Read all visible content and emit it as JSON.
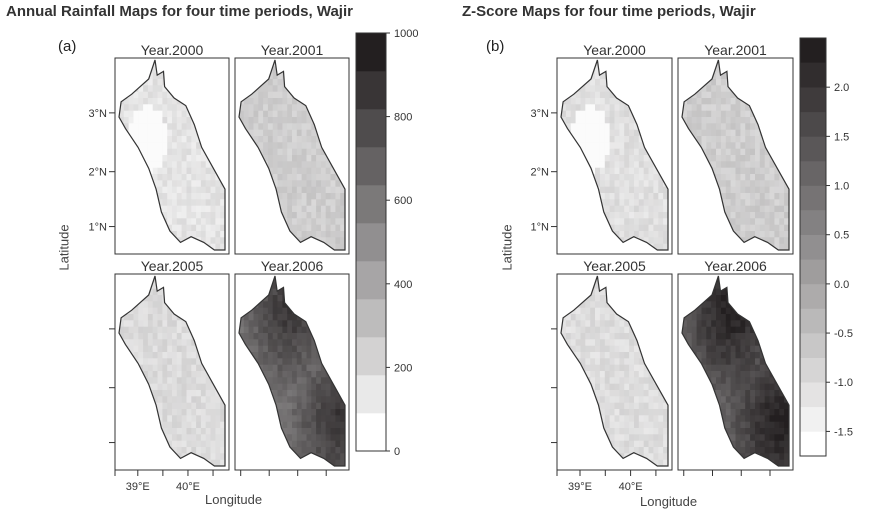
{
  "panels": [
    {
      "id": "a",
      "title": "Annual Rainfall Maps for four time periods, Wajir",
      "label": "(a)",
      "ylabel": "Latitude",
      "xlabel": "Longitude"
    },
    {
      "id": "b",
      "title": "Z-Score Maps for four time periods, Wajir",
      "label": "(b)",
      "ylabel": "Latitude",
      "xlabel": "Longitude"
    }
  ],
  "chart_data": [
    {
      "type": "heatmap",
      "title": "Annual Rainfall Maps for four time periods, Wajir",
      "panel_label": "(a)",
      "xlabel": "Longitude",
      "ylabel": "Latitude",
      "subplots": [
        {
          "name": "Year.2000",
          "level": 0.12
        },
        {
          "name": "Year.2001",
          "level": 0.22
        },
        {
          "name": "Year.2005",
          "level": 0.16
        },
        {
          "name": "Year.2006",
          "level": 0.62
        }
      ],
      "x_ticks": [
        "39°E",
        "40°E"
      ],
      "y_ticks": [
        "3°N",
        "2°N",
        "1°N"
      ],
      "colorbar": {
        "min": 0,
        "max": 1000,
        "ticks": [
          0,
          200,
          400,
          600,
          800,
          1000
        ],
        "levels": 11
      },
      "colors": {
        "low": "#ffffff",
        "high": "#231f20"
      }
    },
    {
      "type": "heatmap",
      "title": "Z-Score Maps for four time periods, Wajir",
      "panel_label": "(b)",
      "xlabel": "Longitude",
      "ylabel": "Latitude",
      "subplots": [
        {
          "name": "Year.2000",
          "level": 0.14
        },
        {
          "name": "Year.2001",
          "level": 0.22
        },
        {
          "name": "Year.2005",
          "level": 0.15
        },
        {
          "name": "Year.2006",
          "level": 0.72
        }
      ],
      "x_ticks": [
        "39°E",
        "40°E"
      ],
      "y_ticks": [
        "3°N",
        "2°N",
        "1°N"
      ],
      "colorbar": {
        "min": -1.75,
        "max": 2.5,
        "ticks": [
          -1.5,
          -1.0,
          -0.5,
          0.0,
          0.5,
          1.0,
          1.5,
          2.0
        ],
        "tick_labels": [
          "-1.5",
          "-1.0",
          "-0.5",
          "0.0",
          "0.5",
          "1.0",
          "1.5",
          "2.0"
        ],
        "levels": 17
      },
      "colors": {
        "low": "#ffffff",
        "high": "#231f20"
      }
    }
  ]
}
